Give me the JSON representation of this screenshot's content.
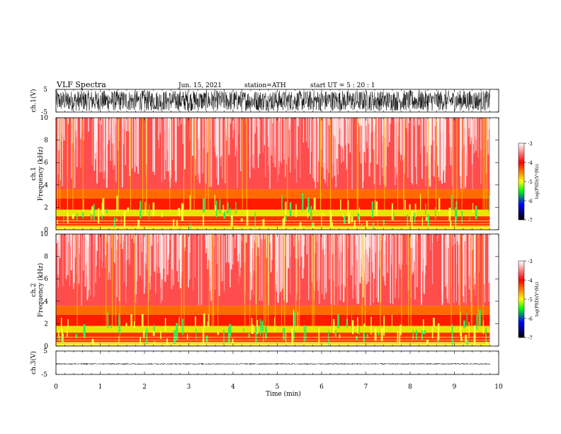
{
  "header": {
    "title": "VLF  Spectra",
    "date": "Jun. 15, 2021",
    "station": "station=ATH",
    "start": "start  UT  =    5  : 20 : 1"
  },
  "colorbar": {
    "label": "log(PSD)(V²/Hz)",
    "ticks": [
      "-3",
      "-4",
      "-5",
      "-6",
      "-7"
    ],
    "stops": [
      "#ffffff",
      "#ff0000",
      "#ffff00",
      "#00ff00",
      "#0000ff",
      "#000000"
    ]
  },
  "chart_data": [
    {
      "type": "line",
      "name": "waveform-ch1",
      "ylabel": "ch.1(V)",
      "ylim": [
        -5,
        5
      ],
      "yticks": [
        "5",
        "-5"
      ],
      "xlim": [
        0,
        10
      ],
      "note_amplitude_V": 4.5
    },
    {
      "type": "heatmap",
      "name": "spectrogram-ch1",
      "ylabel_top": "ch.1",
      "ylabel": "Frequency  (kHz)",
      "ylim": [
        0,
        10
      ],
      "yticks": [
        "0",
        "2",
        "4",
        "6",
        "8",
        "10"
      ],
      "xlim": [
        0,
        10
      ],
      "data_end_min": 9.8,
      "bands_kHz": [
        {
          "from": 0.0,
          "to": 0.3,
          "color": "#ffee00"
        },
        {
          "from": 0.3,
          "to": 1.2,
          "color": "#ff3300"
        },
        {
          "from": 1.2,
          "to": 1.8,
          "color": "#e6e600"
        },
        {
          "from": 1.8,
          "to": 2.8,
          "color": "#ff1a00"
        },
        {
          "from": 2.8,
          "to": 3.6,
          "color": "#ff6a00"
        },
        {
          "from": 3.6,
          "to": 10.0,
          "color": "#ff4d4d"
        }
      ]
    },
    {
      "type": "heatmap",
      "name": "spectrogram-ch2",
      "ylabel_top": "ch.2",
      "ylabel": "Frequency  (kHz)",
      "ylim": [
        0,
        10
      ],
      "yticks": [
        "0",
        "2",
        "4",
        "6",
        "8",
        "10"
      ],
      "xlim": [
        0,
        10
      ],
      "data_end_min": 9.8,
      "bands_kHz": [
        {
          "from": 0.0,
          "to": 0.3,
          "color": "#ffee00"
        },
        {
          "from": 0.3,
          "to": 1.2,
          "color": "#ff3300"
        },
        {
          "from": 1.2,
          "to": 1.8,
          "color": "#e6e600"
        },
        {
          "from": 1.8,
          "to": 2.8,
          "color": "#ff1a00"
        },
        {
          "from": 2.8,
          "to": 3.6,
          "color": "#ff6a00"
        },
        {
          "from": 3.6,
          "to": 10.0,
          "color": "#ff4d4d"
        }
      ]
    },
    {
      "type": "line",
      "name": "waveform-ch3",
      "ylabel": "ch.3(V)",
      "ylim": [
        -5,
        5
      ],
      "yticks": [
        "5",
        "-5"
      ],
      "xlim": [
        0,
        10
      ],
      "note_level_V": -0.5,
      "note_amplitude_V": 0.3
    }
  ],
  "xaxis": {
    "label": "Time  (min)",
    "ticks": [
      "0",
      "1",
      "2",
      "3",
      "4",
      "5",
      "6",
      "7",
      "8",
      "9",
      "10"
    ]
  }
}
